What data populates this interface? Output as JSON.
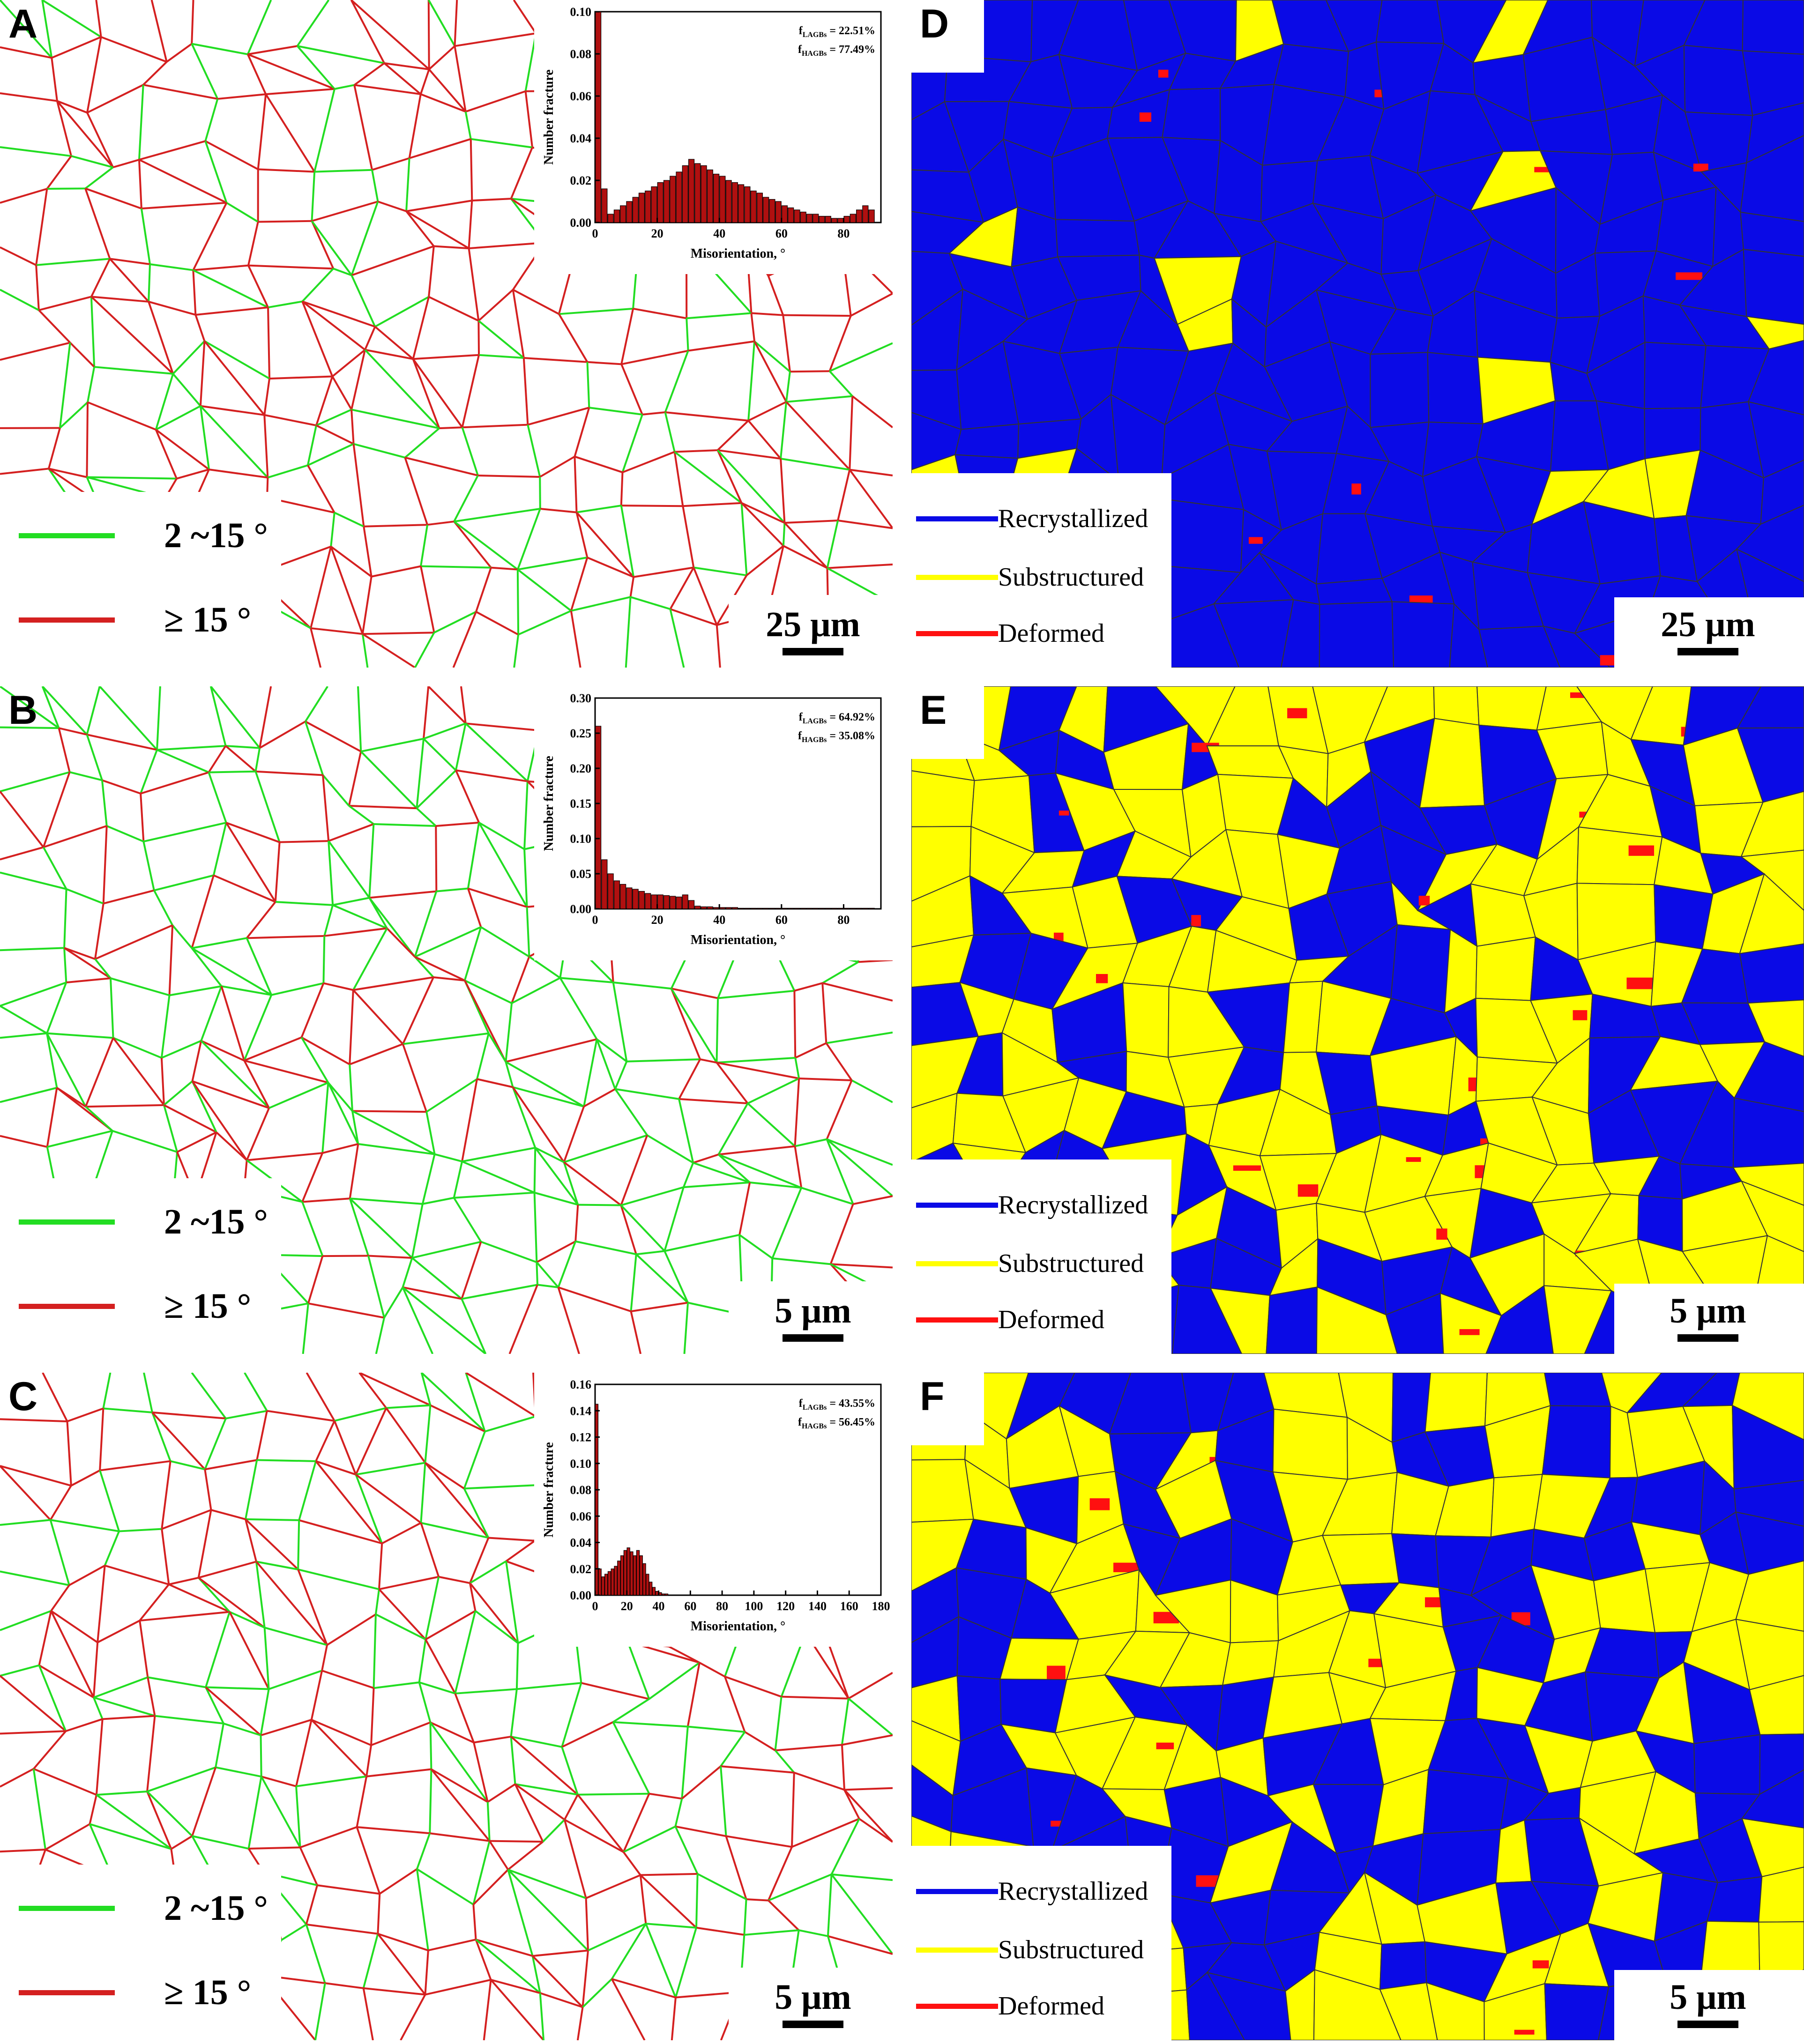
{
  "colors": {
    "lagb": "#22dd22",
    "hagb": "#d42020",
    "recrystallized": "#0a0ae6",
    "substructured": "#ffff00",
    "deformed": "#ff1010",
    "grain_boundary": "#333333"
  },
  "boundary_legend": {
    "low_angle": "2 ~15 °",
    "high_angle": "≥ 15 °"
  },
  "fraction_legend": {
    "recrystallized": "Recrystallized",
    "substructured": "Substructured",
    "deformed": "Deformed"
  },
  "panels": {
    "A": {
      "letter": "A",
      "scale": "25 μm"
    },
    "B": {
      "letter": "B",
      "scale": "5 μm"
    },
    "C": {
      "letter": "C",
      "scale": "5 μm"
    },
    "D": {
      "letter": "D",
      "scale": "25 μm"
    },
    "E": {
      "letter": "E",
      "scale": "5 μm"
    },
    "F": {
      "letter": "F",
      "scale": "5 μm"
    }
  },
  "chart_data": [
    {
      "panel": "A",
      "type": "bar",
      "xlabel": "Misorientation, °",
      "ylabel": "Number fracture",
      "xlim": [
        0,
        92
      ],
      "ylim": [
        0,
        0.1
      ],
      "xticks": [
        0,
        20,
        40,
        60,
        80
      ],
      "yticks": [
        "0.00",
        "0.02",
        "0.04",
        "0.06",
        "0.08",
        "0.10"
      ],
      "annotation_lagb": "22.51%",
      "annotation_hagb": "77.49%",
      "x": [
        1,
        3,
        5,
        7,
        9,
        11,
        13,
        15,
        17,
        19,
        21,
        23,
        25,
        27,
        29,
        31,
        33,
        35,
        37,
        39,
        41,
        43,
        45,
        47,
        49,
        51,
        53,
        55,
        57,
        59,
        61,
        63,
        65,
        67,
        69,
        71,
        73,
        75,
        77,
        79,
        81,
        83,
        85,
        87,
        89
      ],
      "values": [
        0.1,
        0.016,
        0.004,
        0.006,
        0.008,
        0.01,
        0.012,
        0.014,
        0.015,
        0.017,
        0.019,
        0.02,
        0.022,
        0.024,
        0.027,
        0.03,
        0.028,
        0.027,
        0.025,
        0.023,
        0.022,
        0.02,
        0.019,
        0.018,
        0.017,
        0.015,
        0.014,
        0.012,
        0.011,
        0.01,
        0.008,
        0.007,
        0.006,
        0.005,
        0.004,
        0.004,
        0.003,
        0.003,
        0.002,
        0.002,
        0.003,
        0.004,
        0.006,
        0.008,
        0.006
      ]
    },
    {
      "panel": "B",
      "type": "bar",
      "xlabel": "Misorientation, °",
      "ylabel": "Number fracture",
      "xlim": [
        0,
        92
      ],
      "ylim": [
        0,
        0.3
      ],
      "xticks": [
        0,
        20,
        40,
        60,
        80
      ],
      "yticks": [
        "0.00",
        "0.05",
        "0.10",
        "0.15",
        "0.20",
        "0.25",
        "0.30"
      ],
      "annotation_lagb": "64.92%",
      "annotation_hagb": "35.08%",
      "x": [
        1,
        3,
        5,
        7,
        9,
        11,
        13,
        15,
        17,
        19,
        21,
        23,
        25,
        27,
        29,
        31,
        33,
        35,
        37,
        39,
        41,
        43,
        45,
        47,
        49,
        51,
        53,
        55,
        57,
        59,
        61,
        63,
        65,
        67,
        69,
        71,
        73,
        75,
        77,
        79,
        81,
        83,
        85,
        87,
        89
      ],
      "values": [
        0.26,
        0.07,
        0.05,
        0.04,
        0.035,
        0.03,
        0.028,
        0.025,
        0.022,
        0.02,
        0.02,
        0.019,
        0.018,
        0.017,
        0.02,
        0.012,
        0.004,
        0.003,
        0.003,
        0.002,
        0.002,
        0.002,
        0.002,
        0.001,
        0.001,
        0.001,
        0.001,
        0.001,
        0.001,
        0.001,
        0.001,
        0.001,
        0.001,
        0.001,
        0.001,
        0.001,
        0.001,
        0.001,
        0.001,
        0.001,
        0.001,
        0.001,
        0.001,
        0.001,
        0.001
      ]
    },
    {
      "panel": "C",
      "type": "bar",
      "xlabel": "Misorientation, °",
      "ylabel": "Number fracture",
      "xlim": [
        0,
        180
      ],
      "ylim": [
        0,
        0.16
      ],
      "xticks": [
        0,
        20,
        40,
        60,
        80,
        100,
        120,
        140,
        160,
        180
      ],
      "yticks": [
        "0.00",
        "0.02",
        "0.04",
        "0.06",
        "0.08",
        "0.10",
        "0.12",
        "0.14",
        "0.16"
      ],
      "annotation_lagb": "43.55%",
      "annotation_hagb": "56.45%",
      "x": [
        1,
        3,
        5,
        7,
        9,
        11,
        13,
        15,
        17,
        19,
        21,
        23,
        25,
        27,
        29,
        31,
        33,
        35,
        37,
        39,
        41,
        43,
        45
      ],
      "values": [
        0.145,
        0.02,
        0.014,
        0.016,
        0.018,
        0.02,
        0.022,
        0.026,
        0.03,
        0.034,
        0.036,
        0.033,
        0.03,
        0.034,
        0.03,
        0.024,
        0.016,
        0.01,
        0.006,
        0.003,
        0.002,
        0.001,
        0.001
      ]
    }
  ]
}
